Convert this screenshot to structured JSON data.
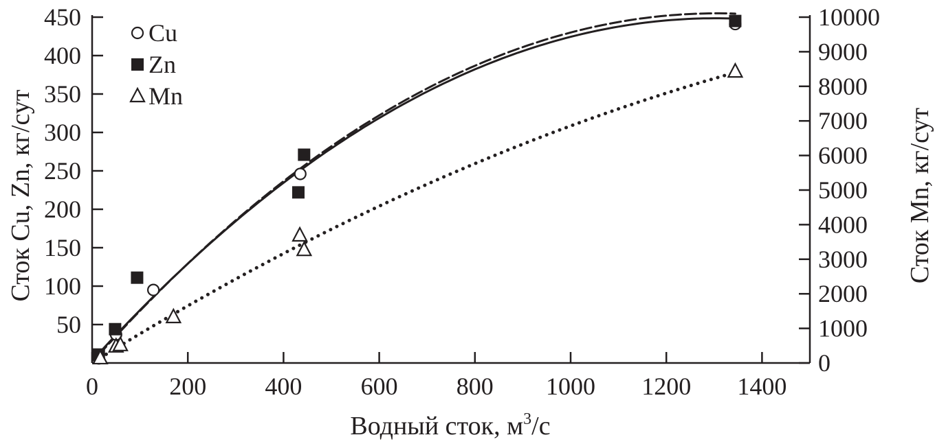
{
  "chart_data": {
    "type": "scatter",
    "title": "",
    "xlabel": "Водный сток, м",
    "xlabel_sup": "3",
    "xlabel_tail": "/с",
    "ylabel": "Сток Cu, Zn, кг/сут",
    "y2label": "Сток Mn, кг/сут",
    "xlim": [
      0,
      1500
    ],
    "ylim": [
      0,
      450
    ],
    "y2lim": [
      0,
      10000
    ],
    "xticks": [
      0,
      200,
      400,
      600,
      800,
      1000,
      1200,
      1400
    ],
    "yticks": [
      50,
      100,
      150,
      200,
      250,
      300,
      350,
      400,
      450
    ],
    "y2ticks": [
      0,
      1000,
      2000,
      3000,
      4000,
      5000,
      6000,
      7000,
      8000,
      9000,
      10000
    ],
    "grid": false,
    "legend_placement": "top-left",
    "series": [
      {
        "name": "Cu",
        "axis": "left",
        "marker": "open-circle",
        "trendline": "solid",
        "x": [
          14,
          50,
          128,
          435,
          1344
        ],
        "y": [
          6,
          37,
          95,
          246,
          441
        ]
      },
      {
        "name": "Zn",
        "axis": "left",
        "marker": "filled-square",
        "trendline": "dashed",
        "x": [
          14,
          48,
          94,
          431,
          443,
          1344
        ],
        "y": [
          11,
          44,
          111,
          222,
          271,
          445
        ]
      },
      {
        "name": "Mn",
        "axis": "right",
        "marker": "open-triangle",
        "trendline": "dotted",
        "x": [
          17,
          50,
          59,
          170,
          434,
          443,
          1344
        ],
        "y": [
          140,
          480,
          520,
          1330,
          3690,
          3270,
          8430
        ]
      }
    ],
    "colors": {
      "ink": "#231f20"
    }
  }
}
